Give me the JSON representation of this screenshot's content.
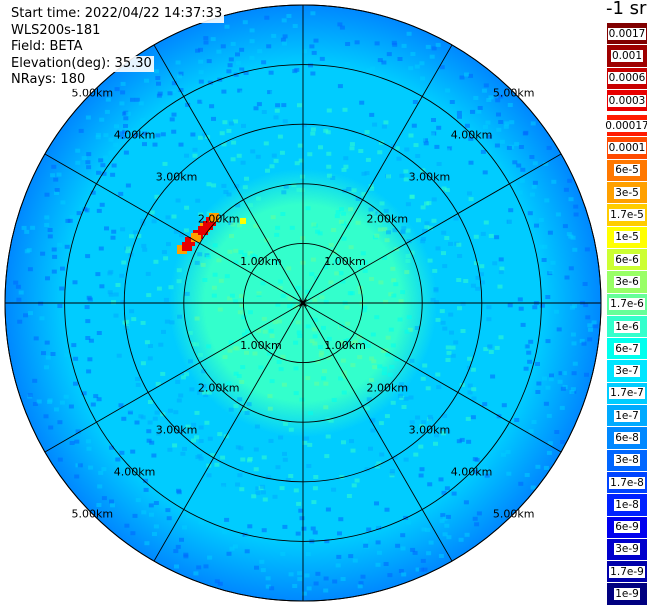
{
  "info": {
    "start_time": "Start time: 2022/04/22 14:37:33",
    "device": "WLS200s-181",
    "field": "Field: BETA",
    "elevation": "Elevation(deg): 35.30",
    "nrays": "NRays: 180"
  },
  "colorbar": {
    "unit_label": "-1 sr",
    "upper": [
      {
        "label": "0.0017",
        "color": "#800000"
      },
      {
        "label": "0.001",
        "color": "#9e0000"
      },
      {
        "label": "0.0006",
        "color": "#c80000"
      },
      {
        "label": "0.0003",
        "color": "#e80000"
      }
    ],
    "lower": [
      {
        "label": "0.00017",
        "color": "#ff1a00"
      },
      {
        "label": "0.0001",
        "color": "#ff4a00"
      },
      {
        "label": "6e-5",
        "color": "#ff7800"
      },
      {
        "label": "3e-5",
        "color": "#ffa000"
      },
      {
        "label": "1.7e-5",
        "color": "#ffcc00"
      },
      {
        "label": "1e-5",
        "color": "#ffff00"
      },
      {
        "label": "6e-6",
        "color": "#ccff33"
      },
      {
        "label": "3e-6",
        "color": "#99ff66"
      },
      {
        "label": "1.7e-6",
        "color": "#66ff99"
      },
      {
        "label": "1e-6",
        "color": "#33ffcc"
      },
      {
        "label": "6e-7",
        "color": "#00ffee"
      },
      {
        "label": "3e-7",
        "color": "#00e5ff"
      },
      {
        "label": "1.7e-7",
        "color": "#00ccff"
      },
      {
        "label": "1e-7",
        "color": "#00aaff"
      },
      {
        "label": "6e-8",
        "color": "#0088ff"
      },
      {
        "label": "3e-8",
        "color": "#0066ff"
      },
      {
        "label": "1.7e-8",
        "color": "#0044ff"
      },
      {
        "label": "1e-8",
        "color": "#0022ff"
      },
      {
        "label": "6e-9",
        "color": "#0000ee"
      },
      {
        "label": "3e-9",
        "color": "#0000cc"
      },
      {
        "label": "1.7e-9",
        "color": "#0000aa"
      },
      {
        "label": "1e-9",
        "color": "#000080"
      }
    ]
  },
  "ppi": {
    "range_ring_labels": [
      "1.00km",
      "2.00km",
      "3.00km",
      "4.00km",
      "5.00km"
    ],
    "azimuth_spokes": 12,
    "colors": {
      "near_field": "#33ffcc",
      "mid_field": "#00ccff",
      "far_field": "#0088ff",
      "hotspot": "#e80000"
    }
  }
}
